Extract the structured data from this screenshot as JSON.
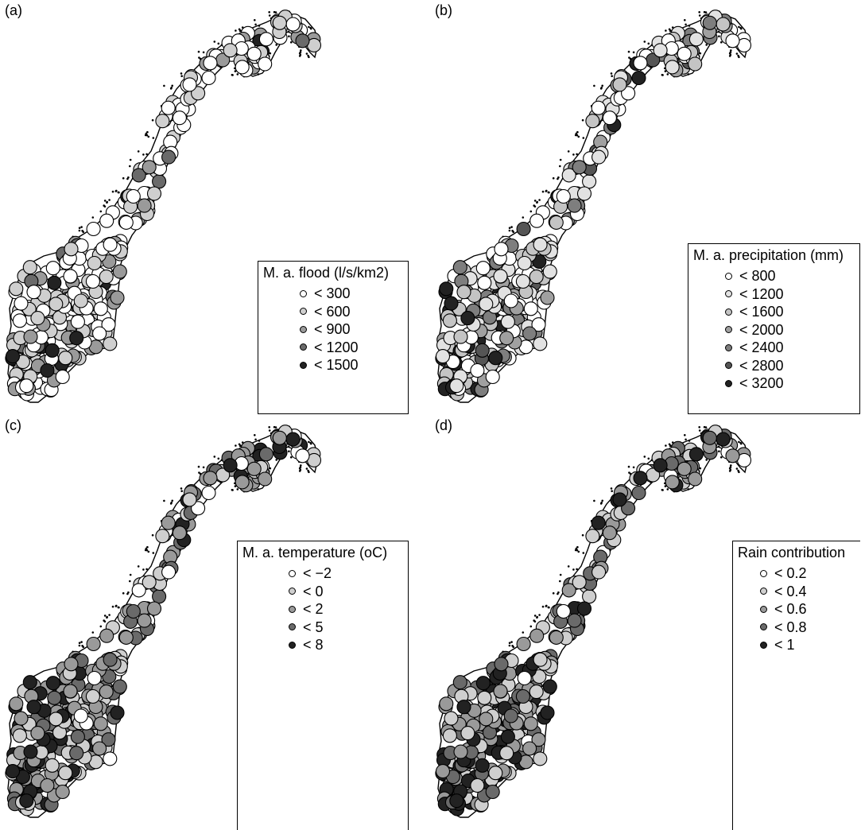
{
  "panels": [
    {
      "label": "(a)",
      "legend_title": "M. a. flood (l/s/km2)",
      "classes": [
        {
          "label": "< 300",
          "color": "#ffffff"
        },
        {
          "label": "< 600",
          "color": "#cfcfcf"
        },
        {
          "label": "< 900",
          "color": "#9a9a9a"
        },
        {
          "label": "< 1200",
          "color": "#6a6a6a"
        },
        {
          "label": "< 1500",
          "color": "#222222"
        }
      ],
      "weights": [
        0.5,
        0.3,
        0.12,
        0.06,
        0.02
      ]
    },
    {
      "label": "(b)",
      "legend_title": "M. a. precipitation (mm)",
      "classes": [
        {
          "label": "< 800",
          "color": "#ffffff"
        },
        {
          "label": "< 1200",
          "color": "#e2e2e2"
        },
        {
          "label": "< 1600",
          "color": "#c4c4c4"
        },
        {
          "label": "< 2000",
          "color": "#a0a0a0"
        },
        {
          "label": "< 2400",
          "color": "#7e7e7e"
        },
        {
          "label": "< 2800",
          "color": "#555555"
        },
        {
          "label": "< 3200",
          "color": "#222222"
        }
      ],
      "weights": [
        0.3,
        0.2,
        0.2,
        0.12,
        0.1,
        0.05,
        0.03
      ]
    },
    {
      "label": "(c)",
      "legend_title": "M. a. temperature (oC)",
      "classes": [
        {
          "label": "< −2",
          "color": "#ffffff"
        },
        {
          "label": "< 0",
          "color": "#cfcfcf"
        },
        {
          "label": "< 2",
          "color": "#9a9a9a"
        },
        {
          "label": "< 5",
          "color": "#6a6a6a"
        },
        {
          "label": "< 8",
          "color": "#222222"
        }
      ],
      "weights": [
        0.12,
        0.28,
        0.3,
        0.2,
        0.1
      ]
    },
    {
      "label": "(d)",
      "legend_title": "Rain contribution",
      "classes": [
        {
          "label": "< 0.2",
          "color": "#ffffff"
        },
        {
          "label": "< 0.4",
          "color": "#cfcfcf"
        },
        {
          "label": "< 0.6",
          "color": "#9a9a9a"
        },
        {
          "label": "< 0.8",
          "color": "#6a6a6a"
        },
        {
          "label": "< 1",
          "color": "#222222"
        }
      ],
      "weights": [
        0.08,
        0.3,
        0.27,
        0.2,
        0.15
      ]
    }
  ]
}
